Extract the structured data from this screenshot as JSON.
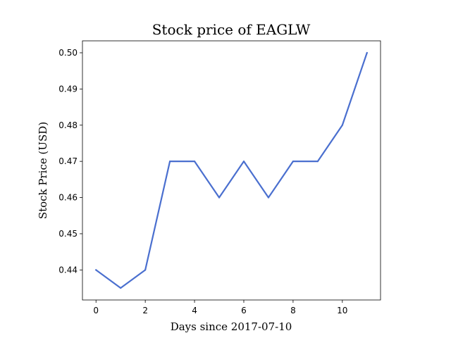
{
  "chart_data": {
    "type": "line",
    "title": "Stock price of EAGLW",
    "xlabel": "Days since 2017-07-10",
    "ylabel": "Stock Price (USD)",
    "x": [
      0,
      1,
      2,
      3,
      4,
      5,
      6,
      7,
      8,
      9,
      10,
      11
    ],
    "series": [
      {
        "values": [
          0.44,
          0.435,
          0.44,
          0.47,
          0.47,
          0.46,
          0.47,
          0.46,
          0.47,
          0.47,
          0.48,
          0.5
        ],
        "color": "#4a6fcf"
      }
    ],
    "xlim": [
      -0.55,
      11.55
    ],
    "ylim": [
      0.4317,
      0.5033
    ],
    "x_ticks": [
      0,
      2,
      4,
      6,
      8,
      10
    ],
    "x_tick_labels": [
      "0",
      "2",
      "4",
      "6",
      "8",
      "10"
    ],
    "y_ticks": [
      0.44,
      0.45,
      0.46,
      0.47,
      0.48,
      0.49,
      0.5
    ],
    "y_tick_labels": [
      "0.44",
      "0.45",
      "0.46",
      "0.47",
      "0.48",
      "0.49",
      "0.50"
    ],
    "grid": false,
    "legend": "none"
  }
}
